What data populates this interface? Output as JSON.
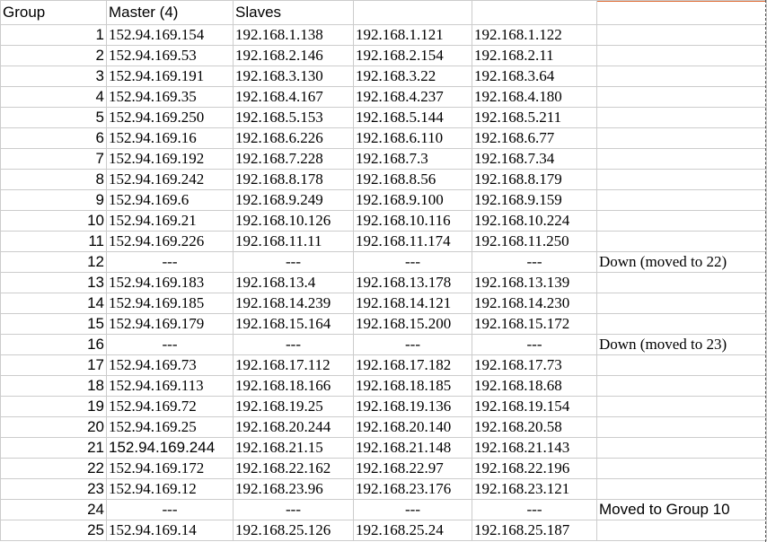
{
  "header": {
    "group": "Group",
    "master": "Master (4)",
    "slaves": "Slaves"
  },
  "rows": [
    {
      "group": "1",
      "master": "152.94.169.154",
      "s1": "192.168.1.138",
      "s2": "192.168.1.121",
      "s3": "192.168.1.122",
      "note": ""
    },
    {
      "group": "2",
      "master": "152.94.169.53",
      "s1": "192.168.2.146",
      "s2": "192.168.2.154",
      "s3": "192.168.2.11",
      "note": ""
    },
    {
      "group": "3",
      "master": "152.94.169.191",
      "s1": "192.168.3.130",
      "s2": "192.168.3.22",
      "s3": "192.168.3.64",
      "note": ""
    },
    {
      "group": "4",
      "master": "152.94.169.35",
      "s1": "192.168.4.167",
      "s2": "192.168.4.237",
      "s3": "192.168.4.180",
      "note": ""
    },
    {
      "group": "5",
      "master": "152.94.169.250",
      "s1": "192.168.5.153",
      "s2": "192.168.5.144",
      "s3": "192.168.5.211",
      "note": ""
    },
    {
      "group": "6",
      "master": "152.94.169.16",
      "s1": "192.168.6.226",
      "s2": "192.168.6.110",
      "s3": "192.168.6.77",
      "note": ""
    },
    {
      "group": "7",
      "master": "152.94.169.192",
      "s1": "192.168.7.228",
      "s2": "192.168.7.3",
      "s3": "192.168.7.34",
      "note": ""
    },
    {
      "group": "8",
      "master": "152.94.169.242",
      "s1": "192.168.8.178",
      "s2": "192.168.8.56",
      "s3": "192.168.8.179",
      "note": ""
    },
    {
      "group": "9",
      "master": "152.94.169.6",
      "s1": "192.168.9.249",
      "s2": "192.168.9.100",
      "s3": "192.168.9.159",
      "note": ""
    },
    {
      "group": "10",
      "master": "152.94.169.21",
      "s1": "192.168.10.126",
      "s2": "192.168.10.116",
      "s3": "192.168.10.224",
      "note": ""
    },
    {
      "group": "11",
      "master": "152.94.169.226",
      "s1": "192.168.11.11",
      "s2": "192.168.11.174",
      "s3": "192.168.11.250",
      "note": ""
    },
    {
      "group": "12",
      "master": "---",
      "s1": "---",
      "s2": "---",
      "s3": "---",
      "note": "Down (moved to 22)"
    },
    {
      "group": "13",
      "master": "152.94.169.183",
      "s1": "192.168.13.4",
      "s2": "192.168.13.178",
      "s3": "192.168.13.139",
      "note": ""
    },
    {
      "group": "14",
      "master": "152.94.169.185",
      "s1": "192.168.14.239",
      "s2": "192.168.14.121",
      "s3": "192.168.14.230",
      "note": ""
    },
    {
      "group": "15",
      "master": "152.94.169.179",
      "s1": "192.168.15.164",
      "s2": "192.168.15.200",
      "s3": "192.168.15.172",
      "note": ""
    },
    {
      "group": "16",
      "master": "---",
      "s1": "---",
      "s2": "---",
      "s3": "---",
      "note": "Down (moved to 23)"
    },
    {
      "group": "17",
      "master": "152.94.169.73",
      "s1": "192.168.17.112",
      "s2": "192.168.17.182",
      "s3": "192.168.17.73",
      "note": ""
    },
    {
      "group": "18",
      "master": "152.94.169.113",
      "s1": "192.168.18.166",
      "s2": "192.168.18.185",
      "s3": "192.168.18.68",
      "note": ""
    },
    {
      "group": "19",
      "master": "152.94.169.72",
      "s1": "192.168.19.25",
      "s2": "192.168.19.136",
      "s3": "192.168.19.154",
      "note": ""
    },
    {
      "group": "20",
      "master": "152.94.169.25",
      "s1": "192.168.20.244",
      "s2": "192.168.20.140",
      "s3": "192.168.20.58",
      "note": ""
    },
    {
      "group": "21",
      "master": "152.94.169.244",
      "s1": "192.168.21.15",
      "s2": "192.168.21.148",
      "s3": "192.168.21.143",
      "note": ""
    },
    {
      "group": "22",
      "master": "152.94.169.172",
      "s1": "192.168.22.162",
      "s2": "192.168.22.97",
      "s3": "192.168.22.196",
      "note": ""
    },
    {
      "group": "23",
      "master": "152.94.169.12",
      "s1": "192.168.23.96",
      "s2": "192.168.23.176",
      "s3": "192.168.23.121",
      "note": ""
    },
    {
      "group": "24",
      "master": "---",
      "s1": "---",
      "s2": "---",
      "s3": "---",
      "note": "Moved to Group 10"
    },
    {
      "group": "25",
      "master": "152.94.169.14",
      "s1": "192.168.25.126",
      "s2": "192.168.25.24",
      "s3": "192.168.25.187",
      "note": ""
    }
  ]
}
